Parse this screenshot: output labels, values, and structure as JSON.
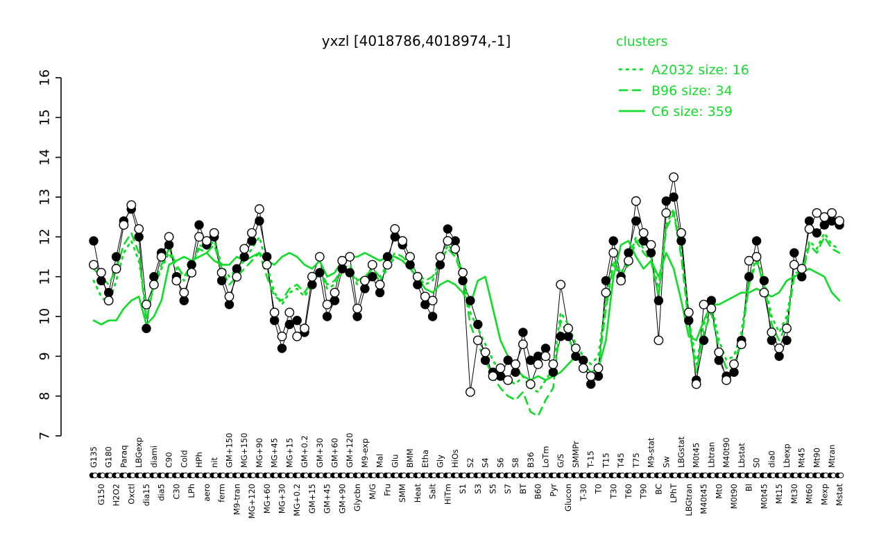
{
  "title": "yxzl [4018786,4018974,-1]",
  "legend": {
    "header": "clusters",
    "entries": [
      {
        "label": "A2032 size: 16",
        "style": "dotted"
      },
      {
        "label": "B96 size: 34",
        "style": "dashed"
      },
      {
        "label": "C6 size: 359",
        "style": "solid"
      }
    ]
  },
  "colors": {
    "cluster": "#15DB2C",
    "points_filled": "#000000",
    "points_open_fill": "#ffffff",
    "axis": "#000000",
    "background": "#ffffff"
  },
  "chart_data": {
    "type": "line",
    "title": "yxzl [4018786,4018974,-1]",
    "xlabel": "",
    "ylabel": "",
    "ylim": [
      7,
      16
    ],
    "yticks": [
      7,
      8,
      9,
      10,
      11,
      12,
      13,
      14,
      15,
      16
    ],
    "grid": false,
    "legend_position": "top-right",
    "categories": [
      "G135",
      "G150",
      "G180",
      "H2O2",
      "Paraq",
      "Oxctl",
      "LBGexp",
      "dia15",
      "diami",
      "dia5",
      "C90",
      "C30",
      "Cold",
      "LPh",
      "HPh",
      "aero",
      "nit",
      "ferm",
      "GM+150",
      "M9-tran",
      "MG+150",
      "MG+120",
      "MG+90",
      "MG+60",
      "MG+45",
      "MG+30",
      "MG+15",
      "MG+0.2",
      "GM+0.2",
      "GM+15",
      "GM+30",
      "GM+45",
      "GM+60",
      "GM+90",
      "GM+120",
      "Glycbn",
      "M9-exp",
      "M/G",
      "Mal",
      "Fru",
      "Glu",
      "SMM",
      "BMM",
      "Heat",
      "Etha",
      "Salt",
      "Gly",
      "HiTm",
      "HiOs",
      "S1",
      "S2",
      "S3",
      "S4",
      "S5",
      "S6",
      "S7",
      "S8",
      "BT",
      "B36",
      "B60",
      "LoTm",
      "Pyr",
      "G/S",
      "Glucon",
      "SMMPr",
      "T-30",
      "T-15",
      "T0",
      "T15",
      "T30",
      "T45",
      "T60",
      "T75",
      "T90",
      "M9-stat",
      "BC",
      "Sw",
      "LPhT",
      "LBGstat",
      "LBGtran",
      "M0t45",
      "M40t45",
      "Lbtran",
      "Mt0",
      "M40t90",
      "M0t90",
      "Lbstat",
      "Bl",
      "S0",
      "M0t45",
      "dia0",
      "Mt15",
      "Lbexp",
      "Mt30",
      "Mt45",
      "Mt60",
      "Mt90",
      "Mexp",
      "Mtran",
      "Mstat"
    ],
    "series": [
      {
        "name": "probe-filled",
        "marker": "filled-circle",
        "color": "#000000",
        "values": [
          11.9,
          10.9,
          10.6,
          11.5,
          12.4,
          12.7,
          12.0,
          9.7,
          11.0,
          11.6,
          11.8,
          11.0,
          10.4,
          11.3,
          12.3,
          11.8,
          12.0,
          10.9,
          10.3,
          11.2,
          11.5,
          11.9,
          12.4,
          11.5,
          9.9,
          9.2,
          9.8,
          9.9,
          9.6,
          10.8,
          11.1,
          10.0,
          10.4,
          11.2,
          11.1,
          10.0,
          10.7,
          11.0,
          10.6,
          11.5,
          12.0,
          11.8,
          11.3,
          10.8,
          10.3,
          10.0,
          11.3,
          12.2,
          11.9,
          10.9,
          10.4,
          9.8,
          8.9,
          8.6,
          8.5,
          8.9,
          8.6,
          9.6,
          8.9,
          9.0,
          9.2,
          8.6,
          9.5,
          9.5,
          9.0,
          8.9,
          8.3,
          8.5,
          10.9,
          11.9,
          11.0,
          11.6,
          12.4,
          11.9,
          11.6,
          10.4,
          12.9,
          13.0,
          11.9,
          9.9,
          8.4,
          9.4,
          10.4,
          8.9,
          8.5,
          8.6,
          9.4,
          11.0,
          11.9,
          10.9,
          9.4,
          9.0,
          9.4,
          11.6,
          11.0,
          12.4,
          12.1,
          12.3,
          12.4,
          12.3
        ]
      },
      {
        "name": "probe-open",
        "marker": "open-circle",
        "color": "#000000",
        "values": [
          11.3,
          11.1,
          10.4,
          11.2,
          12.3,
          12.8,
          12.2,
          10.3,
          10.8,
          11.5,
          12.0,
          10.9,
          10.6,
          11.1,
          12.0,
          11.9,
          12.1,
          11.1,
          10.5,
          11.0,
          11.7,
          12.1,
          12.7,
          11.3,
          10.1,
          9.5,
          10.1,
          9.5,
          9.7,
          11.0,
          11.5,
          10.3,
          10.6,
          11.4,
          11.5,
          10.2,
          10.9,
          11.3,
          10.8,
          11.3,
          12.2,
          11.9,
          11.5,
          11.0,
          10.5,
          10.4,
          11.5,
          11.9,
          11.7,
          11.1,
          8.1,
          9.4,
          9.1,
          8.5,
          8.7,
          8.4,
          8.8,
          9.3,
          8.3,
          8.8,
          9.0,
          8.8,
          10.8,
          9.7,
          9.2,
          8.7,
          8.5,
          8.7,
          10.6,
          11.6,
          10.9,
          11.4,
          12.9,
          12.1,
          11.8,
          9.4,
          12.6,
          13.5,
          12.1,
          10.1,
          8.3,
          10.3,
          10.2,
          9.1,
          8.4,
          8.8,
          9.3,
          11.4,
          11.5,
          10.6,
          9.6,
          9.2,
          9.7,
          11.3,
          11.2,
          12.2,
          12.6,
          12.5,
          12.6,
          12.4
        ]
      },
      {
        "name": "A2032",
        "cluster_size": 16,
        "line": "dotted",
        "color": "#15DB2C",
        "values": [
          10.9,
          10.5,
          10.3,
          10.9,
          11.6,
          11.9,
          11.4,
          10.2,
          10.7,
          11.2,
          11.6,
          11.2,
          10.9,
          11.2,
          11.8,
          11.7,
          11.9,
          11.3,
          11.0,
          11.2,
          11.4,
          11.7,
          12.0,
          11.3,
          10.6,
          10.3,
          10.6,
          10.7,
          10.5,
          10.8,
          11.1,
          10.7,
          10.8,
          11.1,
          11.2,
          10.8,
          10.9,
          11.1,
          10.9,
          11.2,
          11.5,
          11.4,
          11.2,
          11.0,
          10.8,
          10.9,
          11.3,
          11.8,
          11.6,
          11.1,
          10.1,
          9.7,
          9.3,
          8.9,
          8.6,
          8.4,
          8.3,
          8.5,
          8.2,
          8.1,
          8.4,
          8.7,
          10.1,
          9.8,
          9.3,
          9.0,
          8.8,
          9.0,
          10.4,
          11.4,
          11.1,
          11.4,
          12.0,
          11.7,
          11.5,
          10.7,
          12.3,
          12.7,
          11.6,
          10.0,
          8.8,
          9.8,
          10.3,
          9.4,
          8.9,
          9.0,
          9.6,
          10.9,
          11.5,
          10.9,
          10.0,
          9.6,
          10.0,
          11.1,
          11.1,
          11.9,
          11.7,
          12.1,
          11.8,
          11.7
        ]
      },
      {
        "name": "B96",
        "cluster_size": 34,
        "line": "dashed",
        "color": "#15DB2C",
        "values": [
          11.2,
          11.0,
          10.8,
          11.2,
          11.8,
          12.1,
          11.6,
          9.9,
          10.8,
          11.3,
          11.7,
          11.3,
          11.0,
          11.3,
          11.7,
          11.6,
          11.8,
          11.2,
          10.8,
          11.0,
          11.2,
          11.4,
          11.6,
          11.0,
          10.5,
          10.4,
          10.7,
          10.8,
          10.6,
          10.9,
          11.2,
          10.8,
          10.9,
          11.2,
          11.3,
          10.9,
          11.0,
          11.2,
          11.0,
          11.3,
          11.6,
          11.5,
          11.3,
          11.1,
          10.9,
          11.0,
          11.4,
          11.7,
          11.5,
          11.0,
          9.8,
          9.3,
          8.9,
          8.5,
          8.2,
          8.0,
          7.9,
          8.1,
          7.6,
          7.5,
          7.9,
          8.2,
          9.9,
          9.5,
          9.0,
          8.8,
          8.5,
          8.7,
          10.2,
          11.3,
          11.0,
          11.3,
          11.9,
          11.6,
          11.4,
          10.5,
          12.2,
          12.6,
          11.5,
          9.8,
          8.6,
          9.6,
          10.1,
          9.2,
          8.7,
          8.8,
          9.4,
          10.8,
          11.4,
          10.8,
          9.8,
          9.4,
          9.8,
          11.0,
          11.0,
          11.8,
          11.6,
          12.0,
          11.7,
          11.6
        ]
      },
      {
        "name": "C6",
        "cluster_size": 359,
        "line": "solid",
        "color": "#15DB2C",
        "values": [
          9.9,
          9.8,
          9.9,
          9.9,
          10.2,
          10.4,
          10.5,
          9.8,
          10.0,
          10.4,
          11.3,
          11.4,
          11.5,
          11.4,
          11.5,
          11.6,
          11.4,
          11.3,
          11.3,
          11.5,
          11.4,
          11.5,
          11.6,
          11.4,
          11.3,
          11.5,
          11.6,
          11.5,
          11.3,
          11.2,
          11.4,
          11.0,
          11.1,
          11.4,
          11.5,
          11.5,
          11.6,
          11.5,
          11.4,
          11.5,
          11.5,
          11.4,
          11.2,
          11.0,
          10.7,
          10.6,
          10.8,
          10.9,
          10.8,
          10.6,
          10.3,
          10.9,
          11.0,
          10.2,
          9.4,
          9.0,
          8.7,
          8.5,
          8.4,
          8.5,
          8.4,
          8.5,
          8.6,
          8.8,
          9.0,
          8.8,
          8.6,
          8.7,
          9.4,
          11.0,
          11.8,
          11.9,
          11.5,
          11.2,
          11.4,
          11.0,
          11.6,
          11.2,
          10.4,
          9.5,
          9.4,
          9.9,
          10.3,
          10.3,
          10.4,
          10.5,
          10.6,
          10.6,
          10.7,
          10.6,
          10.5,
          10.6,
          10.9,
          11.0,
          11.1,
          11.2,
          11.1,
          11.0,
          10.6,
          10.4
        ]
      }
    ]
  }
}
